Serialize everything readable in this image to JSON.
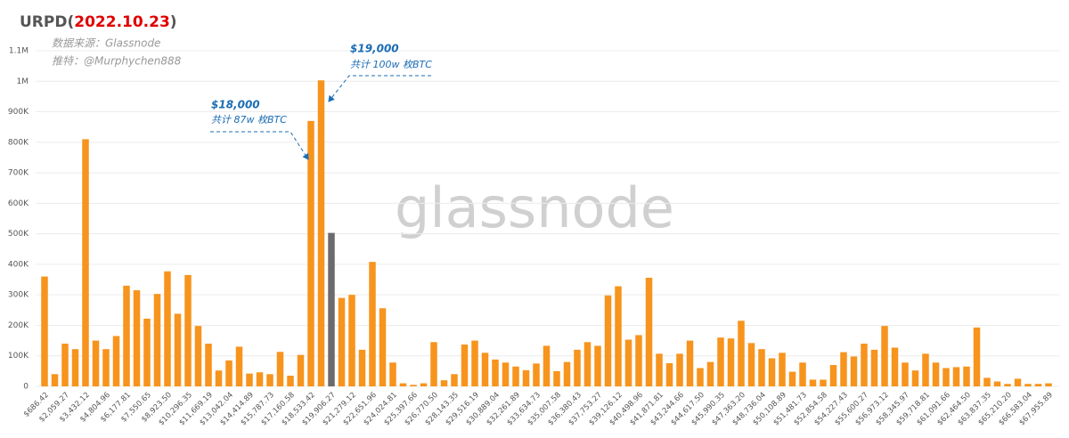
{
  "chart_data": {
    "type": "bar",
    "title_prefix": "URPD(",
    "title_date": "2022.10.23",
    "title_suffix": ")",
    "subtitles": [
      "数据来源：Glassnode",
      "推特：@Murphychen888"
    ],
    "watermark": "glassnode",
    "annotations": [
      {
        "title": "$18,000",
        "text": "共计 87w 枚BTC"
      },
      {
        "title": "$19,000",
        "text": "共计 100w 枚BTC"
      }
    ],
    "categories": [
      "$686.42",
      null,
      "$2,059.27",
      null,
      "$3,432.12",
      null,
      "$4,804.96",
      null,
      "$6,177.81",
      null,
      "$7,550.65",
      null,
      "$8,923.50",
      null,
      "$10,296.35",
      null,
      "$11,669.19",
      null,
      "$13,042.04",
      null,
      "$14,414.89",
      null,
      "$15,787.73",
      null,
      "$17,160.58",
      null,
      "$18,533.42",
      null,
      "$19,906.27",
      null,
      "$21,279.12",
      null,
      "$22,651.96",
      null,
      "$24,024.81",
      null,
      "$25,397.66",
      null,
      "$26,770.50",
      null,
      "$28,143.35",
      null,
      "$29,516.19",
      null,
      "$30,889.04",
      null,
      "$32,261.89",
      null,
      "$33,634.73",
      null,
      "$35,007.58",
      null,
      "$36,380.43",
      null,
      "$37,753.27",
      null,
      "$39,126.12",
      null,
      "$40,498.96",
      null,
      "$41,871.81",
      null,
      "$43,244.66",
      null,
      "$44,617.50",
      null,
      "$45,990.35",
      null,
      "$47,363.20",
      null,
      "$48,736.04",
      null,
      "$50,108.89",
      null,
      "$51,481.73",
      null,
      "$52,854.58",
      null,
      "$54,227.43",
      null,
      "$55,600.27",
      null,
      "$56,973.12",
      null,
      "$58,345.97",
      null,
      "$59,718.81",
      null,
      "$61,091.66",
      null,
      "$62,464.50",
      null,
      "$63,837.35",
      null,
      "$65,210.20",
      null,
      "$66,583.04",
      null,
      "$67,955.89"
    ],
    "values": [
      360000,
      40000,
      140000,
      122000,
      810000,
      150000,
      122000,
      165000,
      330000,
      315000,
      222000,
      303000,
      377000,
      238000,
      365000,
      198000,
      140000,
      52000,
      85000,
      130000,
      42000,
      46000,
      40000,
      113000,
      35000,
      103000,
      870000,
      1003000,
      503000,
      290000,
      300000,
      120000,
      408000,
      256000,
      78000,
      10000,
      5000,
      10000,
      145000,
      20000,
      40000,
      137000,
      150000,
      110000,
      88000,
      78000,
      65000,
      53000,
      75000,
      133000,
      50000,
      80000,
      120000,
      145000,
      133000,
      298000,
      328000,
      153000,
      168000,
      356000,
      107000,
      76000,
      107000,
      150000,
      60000,
      80000,
      160000,
      157000,
      215000,
      142000,
      122000,
      92000,
      110000,
      48000,
      78000,
      22000,
      22000,
      70000,
      112000,
      98000,
      140000,
      120000,
      198000,
      127000,
      78000,
      52000,
      107000,
      78000,
      60000,
      63000,
      65000,
      193000,
      28000,
      16000,
      8000,
      25000,
      8000,
      8000,
      10000
    ],
    "color": "#f7941d",
    "highlight": {
      "index": 28,
      "color": "#6b6b6b"
    },
    "ylim": [
      0,
      1100000
    ],
    "yticks": [
      0,
      {
        "value": 100000,
        "label": "100K"
      },
      {
        "value": 200000,
        "label": "200K"
      },
      {
        "value": 300000,
        "label": "300K"
      },
      {
        "value": 400000,
        "label": "400K"
      },
      {
        "value": 500000,
        "label": "500K"
      },
      {
        "value": 600000,
        "label": "600K"
      },
      {
        "value": 700000,
        "label": "700K"
      },
      {
        "value": 800000,
        "label": "800K"
      },
      {
        "value": 900000,
        "label": "900K"
      },
      {
        "value": 1000000,
        "label": "1M"
      },
      {
        "value": 1100000,
        "label": "1.1M"
      }
    ],
    "grid": true
  }
}
